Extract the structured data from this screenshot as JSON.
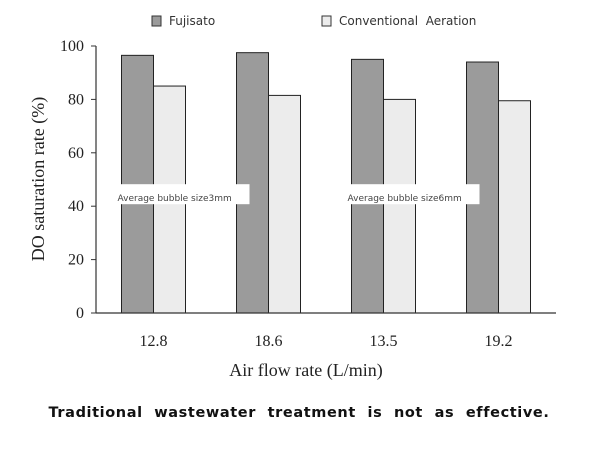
{
  "chart_data": {
    "type": "bar",
    "categories": [
      "12.8",
      "18.6",
      "13.5",
      "19.2"
    ],
    "series": [
      {
        "name": "Fujisato",
        "values": [
          96.5,
          97.5,
          95,
          94
        ],
        "color": "#9b9b9b"
      },
      {
        "name": "Conventional  Aeration",
        "values": [
          85,
          81.5,
          80,
          79.5
        ],
        "color": "#ececec"
      }
    ],
    "title": "",
    "xlabel": "Air flow rate (L/min)",
    "ylabel": "DO saturation rate (%)",
    "ylim": [
      0,
      100
    ],
    "yticks": [
      0,
      20,
      40,
      60,
      80,
      100
    ],
    "grid": false,
    "legend": "top",
    "annotations": [
      {
        "text": "Average bubble size3mm",
        "group": 0,
        "value": 43
      },
      {
        "text": "Average bubble size6mm",
        "group": 2,
        "value": 43
      }
    ]
  },
  "caption": "Traditional  wastewater  treatment  is  not  as  effective."
}
